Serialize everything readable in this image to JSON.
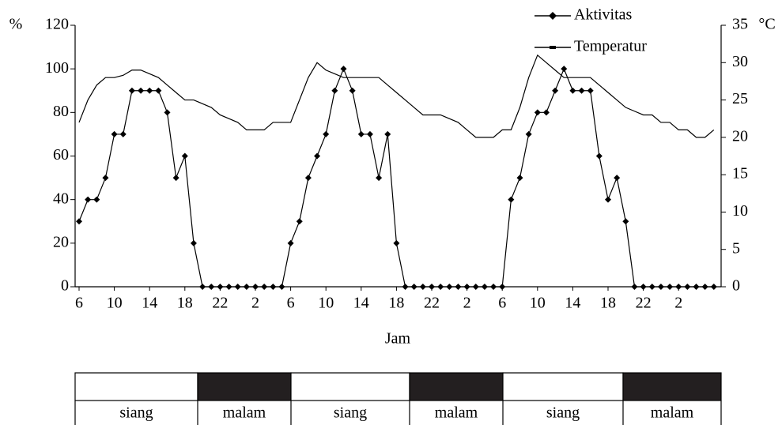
{
  "chart_data": {
    "type": "line",
    "x_label": "Jam",
    "y_unit": "%",
    "y2_unit": "°C",
    "categories": [
      "6",
      null,
      null,
      null,
      "10",
      null,
      null,
      null,
      "14",
      null,
      null,
      null,
      "18",
      null,
      null,
      null,
      "22",
      null,
      null,
      null,
      "2",
      null,
      null,
      null,
      "6",
      null,
      null,
      null,
      "10",
      null,
      null,
      null,
      "14",
      null,
      null,
      null,
      "18",
      null,
      null,
      null,
      "22",
      null,
      null,
      null,
      "2",
      null,
      null,
      null,
      "6",
      null,
      null,
      null,
      "10",
      null,
      null,
      null,
      "14",
      null,
      null,
      null,
      "18",
      null,
      null,
      null,
      "22",
      null,
      null,
      null,
      "2",
      null,
      null,
      null,
      null
    ],
    "series": [
      {
        "name": "Aktivitas",
        "color": "#000000",
        "marker": "diamond",
        "values": [
          30,
          40,
          40,
          50,
          70,
          70,
          90,
          90,
          90,
          90,
          80,
          50,
          60,
          20,
          0,
          0,
          0,
          0,
          0,
          0,
          0,
          0,
          0,
          0,
          20,
          30,
          50,
          60,
          70,
          90,
          100,
          90,
          70,
          70,
          50,
          70,
          20,
          0,
          0,
          0,
          0,
          0,
          0,
          0,
          0,
          0,
          0,
          0,
          0,
          40,
          50,
          70,
          80,
          80,
          90,
          100,
          90,
          90,
          90,
          60,
          40,
          50,
          30,
          0,
          0,
          0,
          0,
          0,
          0,
          0,
          0,
          0,
          0
        ]
      },
      {
        "name": "Temperatur",
        "color": "#000000",
        "axis": "y2",
        "marker": "dash",
        "values": [
          22,
          25,
          27,
          28,
          28,
          28.3,
          29,
          29,
          28.5,
          28,
          27,
          26,
          25,
          25,
          24.5,
          24,
          23,
          22.5,
          22,
          21,
          21,
          21,
          22,
          22,
          22,
          25,
          28,
          30,
          29,
          28.5,
          28,
          28,
          28,
          28,
          28,
          27,
          26,
          25,
          24,
          23,
          23,
          23,
          22.5,
          22,
          21,
          20,
          20,
          20,
          21,
          21,
          24,
          28,
          31,
          30,
          29,
          28,
          28,
          28,
          28,
          27,
          26,
          25,
          24,
          23.5,
          23,
          23,
          22,
          22,
          21,
          21,
          20,
          20,
          21
        ]
      }
    ],
    "ylim": [
      0,
      120
    ],
    "yticks": [
      0,
      20,
      40,
      60,
      80,
      100,
      120
    ],
    "y2lim": [
      0,
      35
    ],
    "y2ticks": [
      0,
      5,
      10,
      15,
      20,
      25,
      30,
      35
    ],
    "grid": false,
    "legend": "top-right"
  },
  "day_night": [
    "siang",
    "malam",
    "siang",
    "malam",
    "siang",
    "malam"
  ]
}
